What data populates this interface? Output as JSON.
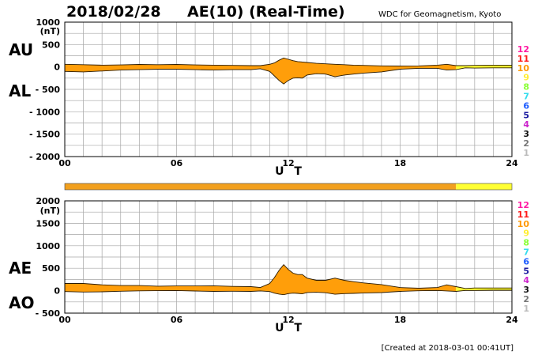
{
  "header": {
    "date": "2018/02/28",
    "title": "AE(10) (Real-Time)",
    "source": "WDC for Geomagnetism, Kyoto",
    "created": "[Created at 2018-03-01 00:41UT]"
  },
  "colors": {
    "fill_orange": "#ff9e0a",
    "fill_yellow": "#ffff33",
    "bar_orange": "#f2a01e",
    "line": "#2a1a00"
  },
  "station_counts": [
    {
      "label": "12",
      "color": "#ff1aa3"
    },
    {
      "label": "11",
      "color": "#ff1a1a"
    },
    {
      "label": "10",
      "color": "#ff9900"
    },
    {
      "label": "9",
      "color": "#ffee33"
    },
    {
      "label": "8",
      "color": "#88ff33"
    },
    {
      "label": "7",
      "color": "#33ddee"
    },
    {
      "label": "6",
      "color": "#1a5aff"
    },
    {
      "label": "5",
      "color": "#1a1aa0"
    },
    {
      "label": "4",
      "color": "#cc22cc"
    },
    {
      "label": "3",
      "color": "#111111"
    },
    {
      "label": "2",
      "color": "#777777"
    },
    {
      "label": "1",
      "color": "#bbbbbb"
    }
  ],
  "station_bar": {
    "segments": [
      {
        "from": 0,
        "to": 21,
        "stations": "10"
      },
      {
        "from": 21,
        "to": 24,
        "stations": "9"
      }
    ]
  },
  "chart_data": [
    {
      "type": "area",
      "name": "AU/AL",
      "labels": {
        "upper": "AU",
        "lower": "AL"
      },
      "ylabel": "(nT)",
      "xlabel": "U T",
      "xlim": [
        0,
        24
      ],
      "ylim": [
        -2000,
        1000
      ],
      "yticks": [
        1000,
        500,
        0,
        -500,
        -1000,
        -1500,
        -2000
      ],
      "ytick_labels": [
        "1000",
        "500",
        "0",
        "- 500",
        "- 1000",
        "- 1500",
        "- 2000"
      ],
      "xticks": [
        "00",
        "06",
        "12",
        "18",
        "24"
      ],
      "grid": true,
      "x": [
        0,
        1,
        2,
        3,
        4,
        5,
        6,
        7,
        8,
        9,
        10,
        10.5,
        11,
        11.25,
        11.5,
        11.75,
        12,
        12.25,
        12.5,
        12.75,
        13,
        13.5,
        14,
        14.5,
        15,
        15.5,
        16,
        17,
        18,
        19,
        20,
        20.5,
        21,
        21.5,
        22,
        23,
        24
      ],
      "series": [
        {
          "name": "AU",
          "values": [
            60,
            50,
            40,
            45,
            55,
            50,
            55,
            45,
            40,
            35,
            30,
            30,
            60,
            90,
            150,
            200,
            170,
            140,
            120,
            110,
            100,
            80,
            70,
            60,
            50,
            40,
            35,
            25,
            20,
            25,
            40,
            60,
            30,
            30,
            35,
            40,
            40
          ]
        },
        {
          "name": "AL",
          "values": [
            -100,
            -110,
            -90,
            -70,
            -60,
            -50,
            -50,
            -60,
            -70,
            -60,
            -60,
            -40,
            -100,
            -200,
            -300,
            -380,
            -300,
            -250,
            -240,
            -250,
            -180,
            -150,
            -160,
            -220,
            -180,
            -160,
            -140,
            -110,
            -50,
            -30,
            -30,
            -70,
            -60,
            -20,
            -25,
            -20,
            -20
          ]
        }
      ]
    },
    {
      "type": "area",
      "name": "AE/AO",
      "labels": {
        "upper": "AE",
        "lower": "AO"
      },
      "ylabel": "(nT)",
      "xlabel": "U T",
      "xlim": [
        0,
        24
      ],
      "ylim": [
        -500,
        2000
      ],
      "yticks": [
        2000,
        1500,
        1000,
        500,
        0,
        -500
      ],
      "ytick_labels": [
        "2000",
        "1500",
        "1000",
        "500",
        "0",
        "- 500"
      ],
      "xticks": [
        "00",
        "06",
        "12",
        "18",
        "24"
      ],
      "grid": true,
      "x": [
        0,
        1,
        2,
        3,
        4,
        5,
        6,
        7,
        8,
        9,
        10,
        10.5,
        11,
        11.25,
        11.5,
        11.75,
        12,
        12.25,
        12.5,
        12.75,
        13,
        13.5,
        14,
        14.5,
        15,
        15.5,
        16,
        17,
        18,
        19,
        20,
        20.5,
        21,
        21.5,
        22,
        23,
        24
      ],
      "series": [
        {
          "name": "AE",
          "values": [
            160,
            160,
            130,
            115,
            115,
            100,
            105,
            105,
            110,
            95,
            90,
            70,
            160,
            290,
            450,
            580,
            470,
            390,
            360,
            360,
            280,
            230,
            230,
            280,
            230,
            200,
            175,
            135,
            70,
            55,
            70,
            130,
            90,
            50,
            60,
            60,
            60
          ]
        },
        {
          "name": "AO",
          "values": [
            -20,
            -30,
            -25,
            -12,
            -3,
            0,
            3,
            -7,
            -15,
            -12,
            -15,
            -5,
            -20,
            -55,
            -75,
            -90,
            -65,
            -55,
            -60,
            -70,
            -40,
            -35,
            -45,
            -80,
            -65,
            -60,
            -52,
            -42,
            -15,
            -2,
            5,
            -5,
            -15,
            5,
            5,
            10,
            10
          ]
        }
      ]
    }
  ]
}
